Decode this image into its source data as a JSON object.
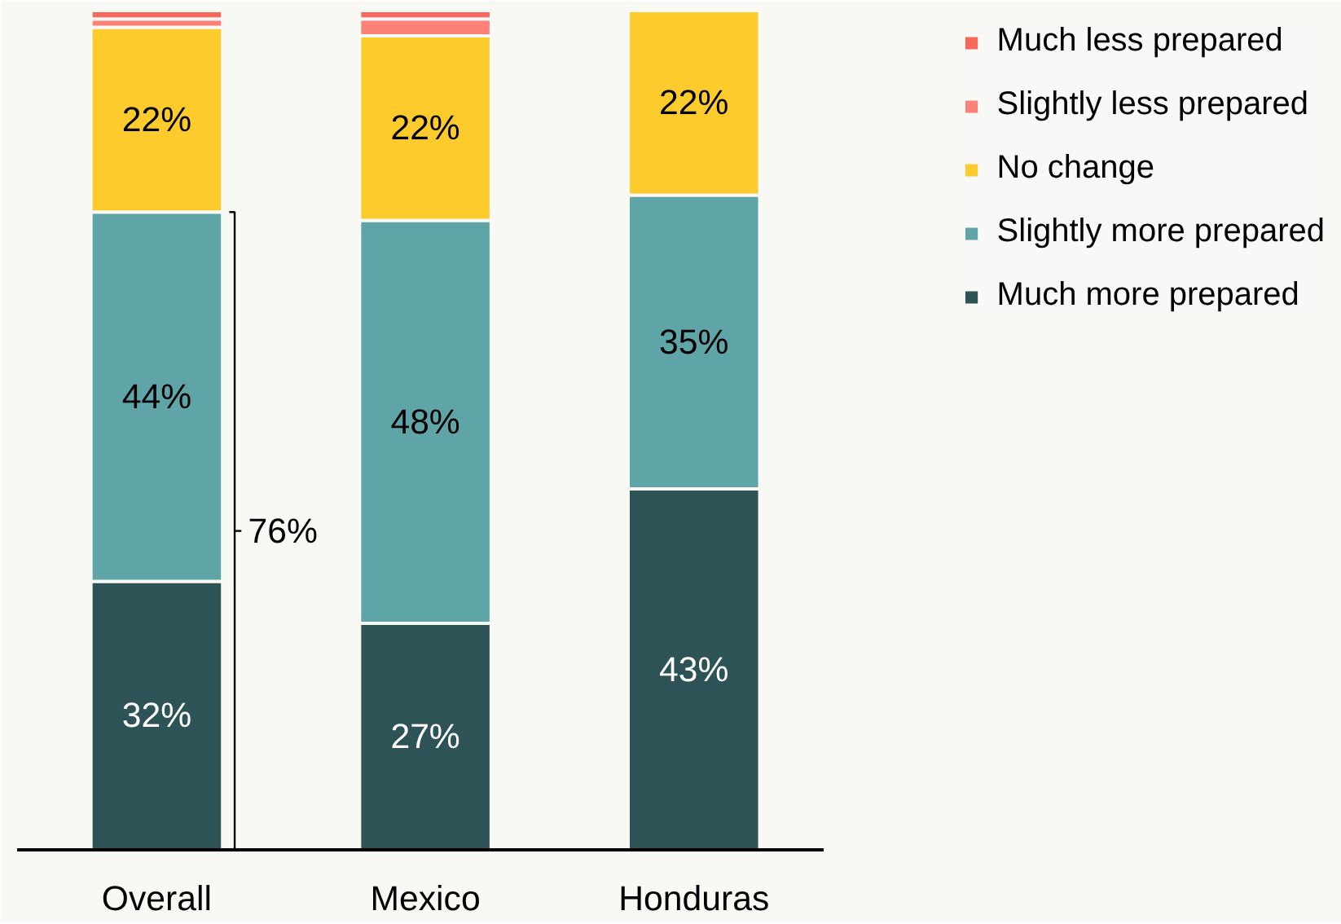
{
  "chart_data": {
    "type": "bar",
    "stacked": true,
    "categories": [
      "Overall",
      "Mexico",
      "Honduras"
    ],
    "series": [
      {
        "name": "Much more prepared",
        "color": "#2d5356",
        "values": [
          32,
          27,
          43
        ],
        "value_labels": [
          "32%",
          "27%",
          "43%"
        ]
      },
      {
        "name": "Slightly more prepared",
        "color": "#5fa5a8",
        "values": [
          44,
          48,
          35
        ],
        "value_labels": [
          "44%",
          "48%",
          "35%"
        ]
      },
      {
        "name": "No change",
        "color": "#fecb2c",
        "values": [
          22,
          22,
          22
        ],
        "value_labels": [
          "22%",
          "22%",
          "22%"
        ]
      },
      {
        "name": "Slightly less prepared",
        "color": "#fd8177",
        "values": [
          1,
          2,
          null
        ],
        "value_labels": [
          null,
          null,
          null
        ]
      },
      {
        "name": "Much less prepared",
        "color": "#f7685a",
        "values": [
          1,
          1,
          null
        ],
        "value_labels": [
          null,
          null,
          null
        ]
      }
    ],
    "annotations": [
      "76%"
    ],
    "legend": "top right",
    "grid": false
  }
}
